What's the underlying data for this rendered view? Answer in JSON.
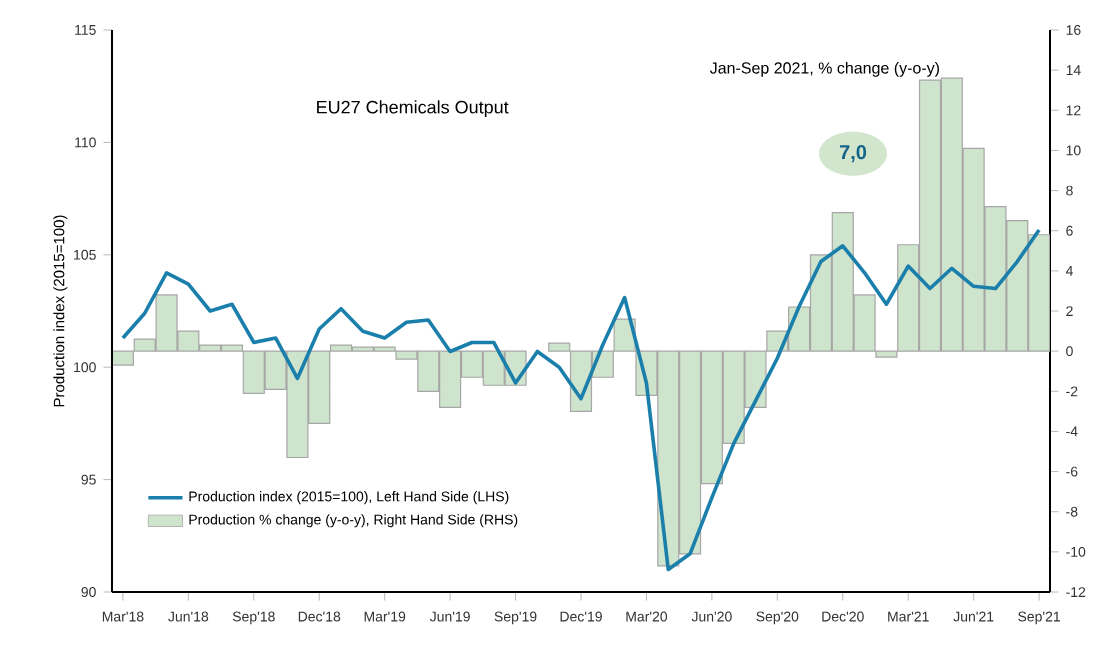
{
  "chart_data": {
    "type": "bar",
    "title": "EU27 Chemicals Output",
    "ylabel": "Production index (2015=100)",
    "annotations": [
      "Jan-Sep 2021, % change (y-o-y)",
      "7,0"
    ],
    "categories": [
      "Mar'18",
      null,
      null,
      "Jun'18",
      null,
      null,
      "Sep'18",
      null,
      null,
      "Dec'18",
      null,
      null,
      "Mar'19",
      null,
      null,
      "Jun'19",
      null,
      null,
      "Sep'19",
      null,
      null,
      "Dec'19",
      null,
      null,
      "Mar'20",
      null,
      null,
      "Jun'20",
      null,
      null,
      "Sep'20",
      null,
      null,
      "Dec'20",
      null,
      null,
      "Mar'21",
      null,
      null,
      "Jun'21",
      null,
      null,
      "Sep'21"
    ],
    "series": [
      {
        "name": "Production index (2015=100), Left Hand Side (LHS)",
        "type": "line",
        "color": "#1b7fab",
        "values": [
          101.3,
          102.4,
          104.2,
          103.7,
          102.5,
          102.8,
          101.1,
          101.3,
          99.5,
          101.7,
          102.6,
          101.6,
          101.3,
          102.0,
          102.1,
          100.7,
          101.1,
          101.1,
          99.3,
          100.7,
          100.0,
          98.6,
          101.0,
          103.1,
          99.3,
          91.0,
          91.7,
          94.2,
          96.6,
          98.5,
          100.4,
          102.7,
          104.7,
          105.4,
          104.2,
          102.8,
          104.5,
          103.5,
          104.4,
          103.6,
          103.5,
          104.7,
          106.1
        ]
      },
      {
        "name": "Production % change (y-o-y), Right Hand Side (RHS)",
        "axis": "y2",
        "color": "#cfe4cc",
        "values": [
          -0.7,
          0.6,
          2.8,
          1.0,
          0.3,
          0.3,
          -2.1,
          -1.9,
          -5.3,
          -3.6,
          0.3,
          0.2,
          0.2,
          -0.4,
          -2.0,
          -2.8,
          -1.3,
          -1.7,
          -1.7,
          null,
          0.4,
          -3.0,
          -1.3,
          1.6,
          -2.2,
          -10.7,
          -10.1,
          -6.6,
          -4.6,
          -2.8,
          1.0,
          2.2,
          4.8,
          6.9,
          2.8,
          -0.3,
          5.3,
          13.5,
          13.6,
          10.1,
          7.2,
          6.5,
          5.8
        ]
      }
    ],
    "ylim": [
      90,
      115
    ],
    "yticks": [
      90,
      95,
      100,
      105,
      110,
      115
    ],
    "y2lim": [
      -12,
      16
    ],
    "y2ticks": [
      -12,
      -10,
      -8,
      -6,
      -4,
      -2,
      0,
      2,
      4,
      6,
      8,
      10,
      12,
      14,
      16
    ],
    "legend": "bottom left",
    "grid": false,
    "marker": "none",
    "line_style": "solid"
  }
}
